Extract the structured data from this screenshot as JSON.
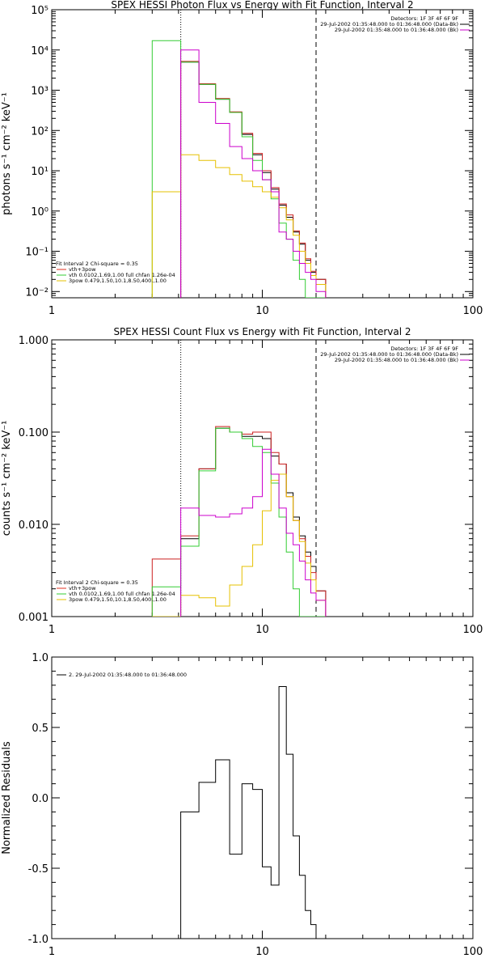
{
  "chart_data": [
    {
      "type": "line",
      "title": "SPEX HESSI Photon Flux vs Energy with Fit Function, Interval 2",
      "xlabel": "",
      "ylabel": "photons s⁻¹ cm⁻² keV⁻¹",
      "xscale": "log",
      "yscale": "log",
      "xlim": [
        1,
        100
      ],
      "ylim": [
        0.007,
        100000
      ],
      "xticks": [
        {
          "v": 1,
          "label": "1"
        },
        {
          "v": 10,
          "label": "10"
        },
        {
          "v": 100,
          "label": "100"
        }
      ],
      "yticks": [
        {
          "v": 0.01,
          "label": "10⁻²"
        },
        {
          "v": 0.1,
          "label": "10⁻¹"
        },
        {
          "v": 1,
          "label": "10⁰"
        },
        {
          "v": 10,
          "label": "10¹"
        },
        {
          "v": 100,
          "label": "10²"
        },
        {
          "v": 1000,
          "label": "10³"
        },
        {
          "v": 10000,
          "label": "10⁴"
        },
        {
          "v": 100000,
          "label": "10⁵"
        }
      ],
      "vlines": [
        {
          "x": 4.1,
          "style": "dotted"
        },
        {
          "x": 18,
          "style": "dashed"
        }
      ],
      "info_text": [
        "Detectors: 1F 3F 4F 6F 9F",
        "29-Jul-2002 01:35:48.000 to 01:36:48.000 (Data-Bk)",
        "29-Jul-2002 01:35:48.000 to 01:36:48.000 (Bk)"
      ],
      "legend_text": [
        "Fit Interval 2   Chi-square = 0.35",
        "vth+3pow",
        "vth 0.0102,1.69,1.00  full chfan 1.26e-04",
        "3pow 0.479,1.50,10.1,8.50,400.,1.00"
      ],
      "legend_colors": [
        "#000000",
        "#e03020",
        "#33cc33",
        "#e6c000"
      ],
      "edges": [
        3,
        4.1,
        5,
        6,
        7,
        8,
        9,
        10,
        11,
        12,
        13,
        14,
        15,
        16,
        17,
        18,
        20
      ],
      "series": [
        {
          "name": "Data-Bk",
          "color": "#000000",
          "values": [
            null,
            5000,
            1400,
            600,
            280,
            80,
            25,
            9,
            3.5,
            1.4,
            0.7,
            0.3,
            0.15,
            0.06,
            0.03,
            0.02
          ]
        },
        {
          "name": "vth+3pow",
          "color": "#cc2020",
          "values": [
            null,
            5200,
            1450,
            620,
            290,
            85,
            27,
            10,
            3.8,
            1.5,
            0.8,
            0.32,
            0.16,
            0.065,
            0.032,
            0.02
          ]
        },
        {
          "name": "vth",
          "color": "#33cc33",
          "values": [
            17000,
            5000,
            1400,
            600,
            280,
            70,
            18,
            6,
            2,
            0.5,
            0.2,
            0.06,
            0.02,
            0.007,
            0.007,
            0.007
          ]
        },
        {
          "name": "3pow",
          "color": "#e6c000",
          "values": [
            3,
            25,
            18,
            12,
            8,
            5.5,
            4,
            3,
            2.2,
            1.2,
            0.6,
            0.25,
            0.1,
            0.05,
            0.025,
            0.015
          ]
        },
        {
          "name": "Bk",
          "color": "#cc00cc",
          "values": [
            null,
            10000,
            500,
            150,
            40,
            20,
            10,
            6,
            3,
            0.3,
            0.2,
            0.1,
            0.05,
            0.03,
            0.02,
            0.01
          ]
        }
      ]
    },
    {
      "type": "line",
      "title": "SPEX HESSI Count Flux vs Energy with Fit Function, Interval 2",
      "xlabel": "",
      "ylabel": "counts s⁻¹ cm⁻² keV⁻¹",
      "xscale": "log",
      "yscale": "log",
      "xlim": [
        1,
        100
      ],
      "ylim": [
        0.001,
        1.0
      ],
      "xticks": [
        {
          "v": 1,
          "label": "1"
        },
        {
          "v": 10,
          "label": "10"
        },
        {
          "v": 100,
          "label": "100"
        }
      ],
      "yticks": [
        {
          "v": 0.001,
          "label": "0.001"
        },
        {
          "v": 0.01,
          "label": "0.010"
        },
        {
          "v": 0.1,
          "label": "0.100"
        },
        {
          "v": 1,
          "label": "1.000"
        }
      ],
      "vlines": [
        {
          "x": 4.1,
          "style": "dotted"
        },
        {
          "x": 18,
          "style": "dashed"
        }
      ],
      "info_text": [
        "Detectors: 1F 3F 4F 6F 9F",
        "29-Jul-2002 01:35:48.000 to 01:36:48.000 (Data-Bk)",
        "29-Jul-2002 01:35:48.000 to 01:36:48.000 (Bk)"
      ],
      "legend_text": [
        "Fit Interval 2   Chi-square = 0.35",
        "vth+3pow",
        "vth 0.0102,1.69,1.00  full chfan 1.26e-04",
        "3pow 0.479,1.50,10.1,8.50,400.,1.00"
      ],
      "legend_colors": [
        "#000000",
        "#e03020",
        "#33cc33",
        "#e6c000"
      ],
      "edges": [
        3,
        4.1,
        5,
        6,
        7,
        8,
        9,
        10,
        11,
        12,
        13,
        14,
        15,
        16,
        17,
        18,
        20
      ],
      "series": [
        {
          "name": "Data-Bk",
          "color": "#000000",
          "values": [
            null,
            0.007,
            0.04,
            0.11,
            0.1,
            0.09,
            0.09,
            0.085,
            0.055,
            0.045,
            0.022,
            0.012,
            0.0075,
            0.005,
            0.0035,
            0.0019
          ]
        },
        {
          "name": "vth+3pow",
          "color": "#cc2020",
          "values": [
            0.0042,
            0.0075,
            0.04,
            0.115,
            0.1,
            0.095,
            0.1,
            0.1,
            0.06,
            0.045,
            0.02,
            0.011,
            0.007,
            0.0045,
            0.003,
            0.0019
          ]
        },
        {
          "name": "vth",
          "color": "#33cc33",
          "values": [
            0.0021,
            0.0058,
            0.038,
            0.11,
            0.1,
            0.085,
            0.07,
            0.06,
            0.028,
            0.012,
            0.005,
            0.002,
            0.001,
            0.001,
            0.001,
            0.001
          ]
        },
        {
          "name": "3pow",
          "color": "#e6c000",
          "values": [
            0.001,
            0.0017,
            0.0016,
            0.0013,
            0.0022,
            0.0035,
            0.006,
            0.014,
            0.03,
            0.035,
            0.02,
            0.011,
            0.0065,
            0.0038,
            0.0025,
            0.0015
          ]
        },
        {
          "name": "Bk",
          "color": "#cc00cc",
          "values": [
            null,
            0.015,
            0.0125,
            0.012,
            0.013,
            0.015,
            0.02,
            0.065,
            0.035,
            0.015,
            0.008,
            0.006,
            0.004,
            0.0025,
            0.0018,
            0.0015
          ]
        }
      ]
    },
    {
      "type": "line",
      "title": "",
      "xlabel": "",
      "ylabel": "Normalized Residuals",
      "xscale": "log",
      "yscale": "linear",
      "xlim": [
        1,
        100
      ],
      "ylim": [
        -1.0,
        1.0
      ],
      "xticks": [
        {
          "v": 1,
          "label": "1"
        },
        {
          "v": 10,
          "label": "10"
        },
        {
          "v": 100,
          "label": "100"
        }
      ],
      "yticks": [
        {
          "v": -1,
          "label": "-1.0"
        },
        {
          "v": -0.5,
          "label": "-0.5"
        },
        {
          "v": 0,
          "label": "0.0"
        },
        {
          "v": 0.5,
          "label": "0.5"
        },
        {
          "v": 1,
          "label": "1.0"
        }
      ],
      "legend_text": [
        "2. 29-Jul-2002 01:35:48.000 to 01:36:48.000"
      ],
      "legend_colors": [
        "#000000"
      ],
      "edges": [
        4.1,
        5,
        6,
        7,
        8,
        9,
        10,
        11,
        12,
        13,
        14,
        15,
        16,
        17,
        18
      ],
      "series": [
        {
          "name": "2. 29-Jul-2002 01:35:48.000 to 01:36:48.000",
          "color": "#000000",
          "values": [
            -0.1,
            0.11,
            0.27,
            -0.4,
            0.1,
            0.06,
            -0.49,
            -0.62,
            0.79,
            0.31,
            -0.27,
            -0.55,
            -0.8,
            -0.9
          ]
        }
      ]
    }
  ]
}
